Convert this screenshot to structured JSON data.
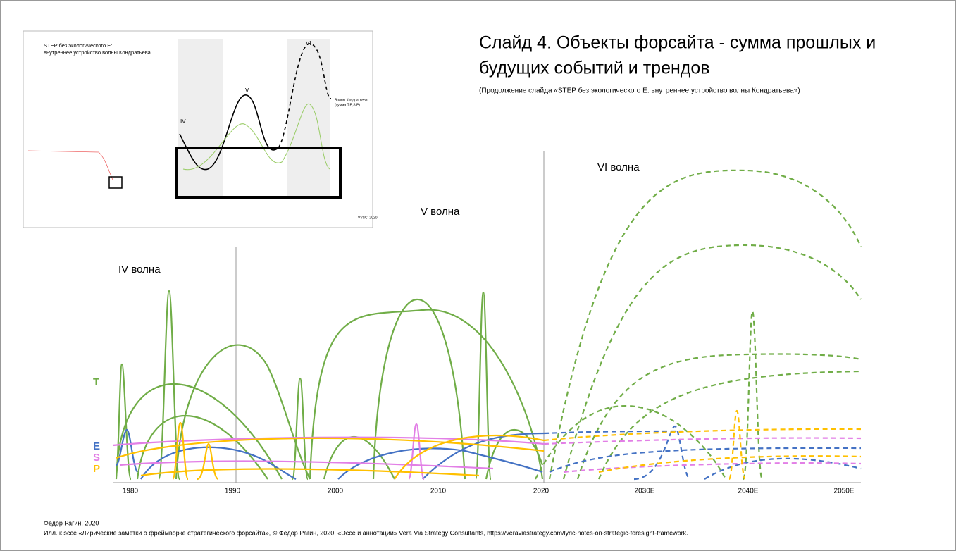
{
  "title": {
    "lines": [
      "Слайд 4. Объекты форсайта - сумма прошлых и",
      "будущих событий и трендов"
    ]
  },
  "subtitle": "(Продолжение слайда «STEP без экологического E: внутреннее устройство волны Кондратьева»)",
  "waves": [
    "IV волна",
    "V волна",
    "VI волна"
  ],
  "factors": [
    "T",
    "E",
    "S",
    "P"
  ],
  "axis": {
    "labels": [
      "1980",
      "1990",
      "2000",
      "2010",
      "2020",
      "2030E",
      "2040E",
      "2050E"
    ]
  },
  "inset": {
    "title": [
      "STEP без экологического E:",
      "внутреннее устройство волны Кондратьева"
    ],
    "waves": [
      "IV",
      "V",
      "VI"
    ],
    "legend": [
      "Волны Кондратьева",
      "(сумма T,E,S,P)"
    ],
    "credit": "VVSC, 2020"
  },
  "footer": {
    "author": "Федор Рагин, 2020",
    "caption": "Илл. к эссе «Лирические заметки о фреймворке стратегического форсайта», © Федор Рагин, 2020, «Эссе и аннотации» Vera Via Strategy Consultants, https://veraviastrategy.com/lyric-notes-on-strategic-foresight-framework."
  }
}
